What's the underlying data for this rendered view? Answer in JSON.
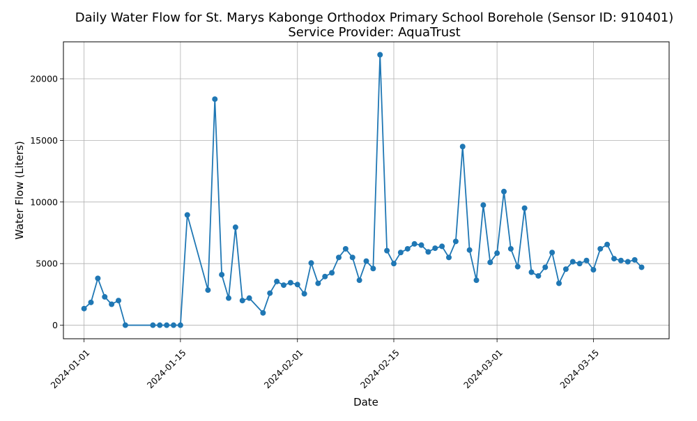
{
  "chart_data": {
    "type": "line",
    "title_line1": "Daily Water Flow for St. Marys Kabonge Orthodox Primary School Borehole (Sensor ID: 910401)",
    "title_line2": "Service Provider: AquaTrust",
    "xlabel": "Date",
    "ylabel": "Water Flow (Liters)",
    "xlim": [
      "2023-12-29",
      "2024-03-26"
    ],
    "ylim": [
      -1100,
      23000
    ],
    "grid": true,
    "x_ticks": [
      "2024-01-01",
      "2024-01-15",
      "2024-02-01",
      "2024-02-15",
      "2024-03-01",
      "2024-03-15"
    ],
    "y_ticks": [
      0,
      5000,
      10000,
      15000,
      20000
    ],
    "line_color": "#1f77b4",
    "series": [
      {
        "points": [
          [
            "2024-01-01",
            1350
          ],
          [
            "2024-01-02",
            1850
          ],
          [
            "2024-01-03",
            3800
          ],
          [
            "2024-01-04",
            2300
          ],
          [
            "2024-01-05",
            1700
          ],
          [
            "2024-01-06",
            2000
          ],
          [
            "2024-01-07",
            0
          ],
          [
            "2024-01-11",
            0
          ],
          [
            "2024-01-12",
            0
          ],
          [
            "2024-01-13",
            0
          ],
          [
            "2024-01-14",
            0
          ],
          [
            "2024-01-15",
            0
          ],
          [
            "2024-01-16",
            8950
          ],
          [
            "2024-01-19",
            2850
          ],
          [
            "2024-01-20",
            18350
          ],
          [
            "2024-01-21",
            4100
          ],
          [
            "2024-01-22",
            2200
          ],
          [
            "2024-01-23",
            7950
          ],
          [
            "2024-01-24",
            2000
          ],
          [
            "2024-01-25",
            2200
          ],
          [
            "2024-01-27",
            1000
          ],
          [
            "2024-01-28",
            2600
          ],
          [
            "2024-01-29",
            3550
          ],
          [
            "2024-01-30",
            3250
          ],
          [
            "2024-01-31",
            3450
          ],
          [
            "2024-02-01",
            3300
          ],
          [
            "2024-02-02",
            2550
          ],
          [
            "2024-02-03",
            5050
          ],
          [
            "2024-02-04",
            3400
          ],
          [
            "2024-02-05",
            3950
          ],
          [
            "2024-02-06",
            4250
          ],
          [
            "2024-02-07",
            5500
          ],
          [
            "2024-02-08",
            6200
          ],
          [
            "2024-02-09",
            5500
          ],
          [
            "2024-02-10",
            3650
          ],
          [
            "2024-02-11",
            5200
          ],
          [
            "2024-02-12",
            4600
          ],
          [
            "2024-02-13",
            21950
          ],
          [
            "2024-02-14",
            6050
          ],
          [
            "2024-02-15",
            5000
          ],
          [
            "2024-02-16",
            5900
          ],
          [
            "2024-02-17",
            6200
          ],
          [
            "2024-02-18",
            6600
          ],
          [
            "2024-02-19",
            6500
          ],
          [
            "2024-02-20",
            5950
          ],
          [
            "2024-02-21",
            6250
          ],
          [
            "2024-02-22",
            6400
          ],
          [
            "2024-02-23",
            5500
          ],
          [
            "2024-02-24",
            6800
          ],
          [
            "2024-02-25",
            14500
          ],
          [
            "2024-02-26",
            6100
          ],
          [
            "2024-02-27",
            3650
          ],
          [
            "2024-02-28",
            9750
          ],
          [
            "2024-02-29",
            5100
          ],
          [
            "2024-03-01",
            5850
          ],
          [
            "2024-03-02",
            10850
          ],
          [
            "2024-03-03",
            6200
          ],
          [
            "2024-03-04",
            4750
          ],
          [
            "2024-03-05",
            9500
          ],
          [
            "2024-03-06",
            4300
          ],
          [
            "2024-03-07",
            4000
          ],
          [
            "2024-03-08",
            4700
          ],
          [
            "2024-03-09",
            5900
          ],
          [
            "2024-03-10",
            3400
          ],
          [
            "2024-03-11",
            4550
          ],
          [
            "2024-03-12",
            5150
          ],
          [
            "2024-03-13",
            5000
          ],
          [
            "2024-03-14",
            5250
          ],
          [
            "2024-03-15",
            4500
          ],
          [
            "2024-03-16",
            6200
          ],
          [
            "2024-03-17",
            6550
          ],
          [
            "2024-03-18",
            5400
          ],
          [
            "2024-03-19",
            5250
          ],
          [
            "2024-03-20",
            5150
          ],
          [
            "2024-03-21",
            5300
          ],
          [
            "2024-03-22",
            4700
          ]
        ]
      }
    ]
  }
}
